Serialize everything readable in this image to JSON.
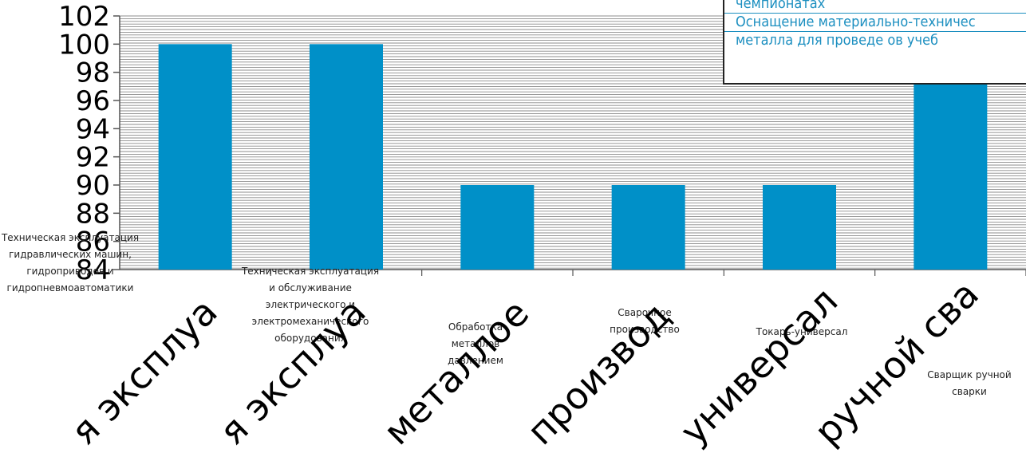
{
  "chart_data": {
    "type": "bar",
    "categories": [
      "Техническая эксплуатация гидравлических машин, гидроприводов и гидропневмоавтоматики",
      "Техническая эксплуатация и обслуживание электрического и электромеханического оборудования",
      "Обработка металлов давлением",
      "Сварочное производство",
      "Токарь-универсал",
      "Сварщик ручной сварки"
    ],
    "rotated_labels": [
      "я эксплуа",
      "я эксплуа",
      "металлое",
      "производ",
      "универсал",
      "ручной сва"
    ],
    "values": [
      100,
      100,
      90,
      90,
      90,
      100
    ],
    "ylim": [
      84,
      102
    ],
    "yticks": [
      "84",
      "86",
      "88",
      "90",
      "92",
      "94",
      "96",
      "98",
      "100",
      "102"
    ],
    "grid": true,
    "bar_color": "#0090c8",
    "title": "",
    "xlabel": "",
    "ylabel": ""
  },
  "legend": {
    "line1": "чемпионатах",
    "line2": "Оснащение    материально-техничес",
    "line3": "металла для проведе    ов учеб"
  }
}
